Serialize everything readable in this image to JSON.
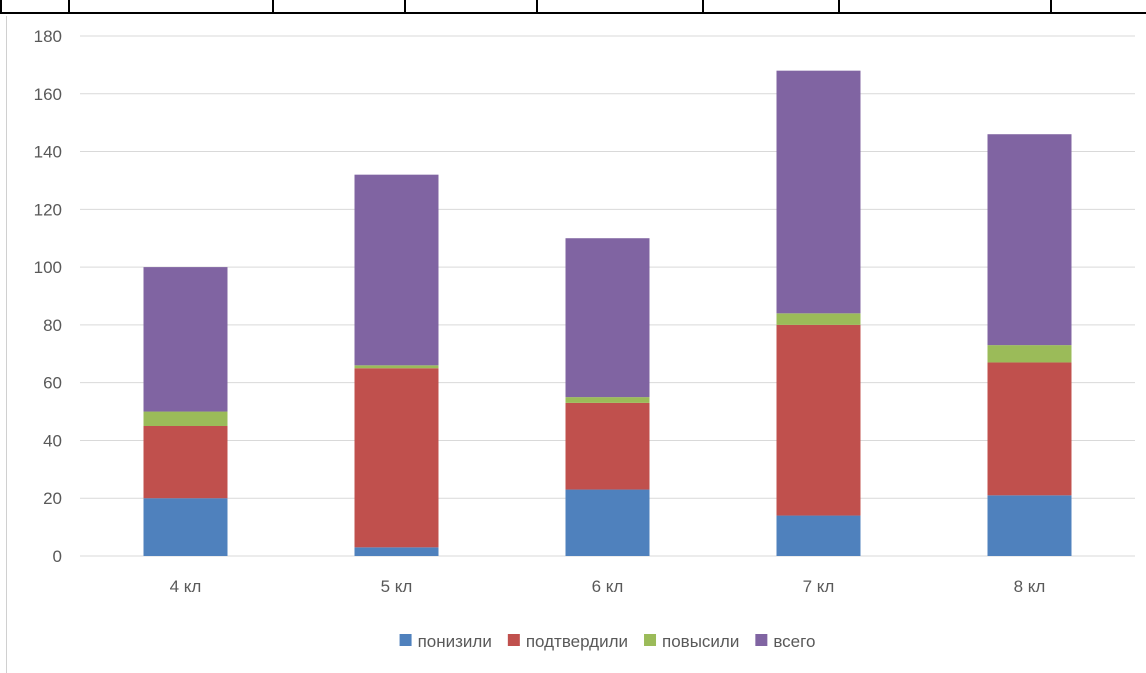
{
  "chart_data": {
    "type": "bar",
    "stacked": true,
    "categories": [
      "4 кл",
      "5 кл",
      "6 кл",
      "7 кл",
      "8 кл"
    ],
    "series": [
      {
        "name": "понизили",
        "color": "#4f81bd",
        "values": [
          20,
          3,
          23,
          14,
          21
        ]
      },
      {
        "name": "подтвердили",
        "color": "#c0504d",
        "values": [
          25,
          62,
          30,
          66,
          46
        ]
      },
      {
        "name": "повысили",
        "color": "#9bbb59",
        "values": [
          5,
          1,
          2,
          4,
          6
        ]
      },
      {
        "name": "всего",
        "color": "#8064a2",
        "values": [
          50,
          66,
          55,
          84,
          73
        ]
      }
    ],
    "ylim": [
      0,
      180
    ],
    "yticks": [
      0,
      20,
      40,
      60,
      80,
      100,
      120,
      140,
      160,
      180
    ],
    "grid": true,
    "legend": "bottom"
  }
}
